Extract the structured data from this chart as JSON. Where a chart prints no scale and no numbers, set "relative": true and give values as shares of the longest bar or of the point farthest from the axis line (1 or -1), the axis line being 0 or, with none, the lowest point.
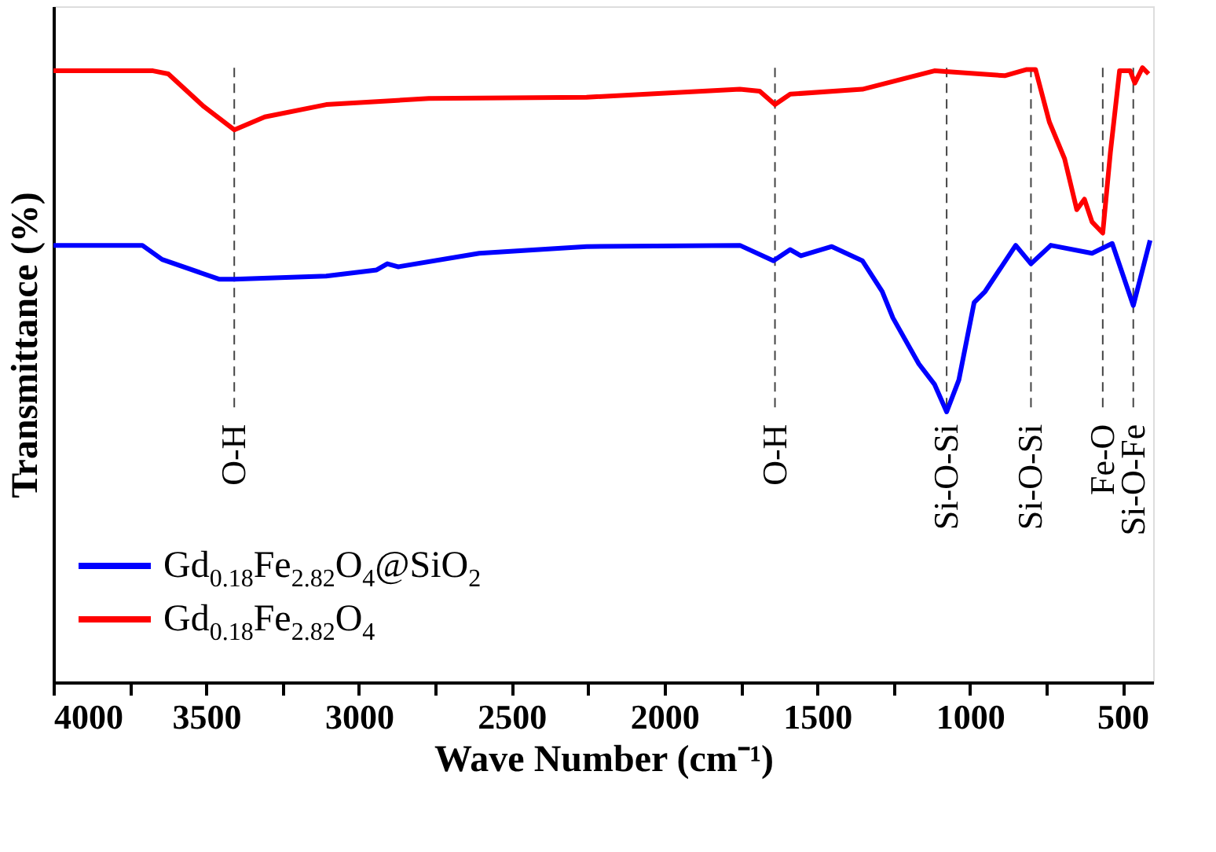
{
  "chart_data": {
    "type": "line",
    "relative": true,
    "xlabel": "Wave Number (cm⁻¹)",
    "ylabel": "Transmittance (%)",
    "xlim": [
      4000,
      400
    ],
    "xticks": [
      4000,
      {
        "value": 3750,
        "label": null
      },
      3500,
      {
        "value": 3250,
        "label": null
      },
      3000,
      {
        "value": 2750,
        "label": null
      },
      2500,
      {
        "value": 2250,
        "label": null
      },
      2000,
      {
        "value": 1750,
        "label": null
      },
      1500,
      {
        "value": 1250,
        "label": null
      },
      1000,
      {
        "value": 750,
        "label": null
      },
      500
    ],
    "grid": false,
    "legend": "bottom left",
    "marker": "none",
    "line_style": "solid",
    "series": [
      {
        "name": "Gd$_{0.18}$Fe$_{2.82}$O$_{4}$@SiO$_{2}$",
        "color": "#0000ff",
        "x": [
          4000,
          3709,
          3644,
          3458,
          3408,
          3107,
          2942,
          2907,
          2872,
          2606,
          2255,
          1753,
          1643,
          1588,
          1553,
          1452,
          1352,
          1287,
          1252,
          1167,
          1116,
          1076,
          1036,
          986,
          950,
          850,
          800,
          735,
          600,
          534,
          465,
          410
        ],
        "values": [
          0.711,
          0.711,
          0.688,
          0.656,
          0.656,
          0.661,
          0.671,
          0.681,
          0.676,
          0.698,
          0.709,
          0.711,
          0.686,
          0.704,
          0.694,
          0.709,
          0.686,
          0.636,
          0.593,
          0.518,
          0.485,
          0.44,
          0.492,
          0.618,
          0.636,
          0.711,
          0.681,
          0.711,
          0.698,
          0.714,
          0.613,
          0.719
        ]
      },
      {
        "name": "Gd$_{0.18}$Fe$_{2.82}$O$_{4}$",
        "color": "#ff0000",
        "x": [
          4000,
          3674,
          3624,
          3508,
          3408,
          3308,
          3107,
          2771,
          2255,
          1753,
          1688,
          1638,
          1588,
          1352,
          1116,
          886,
          816,
          785,
          740,
          690,
          650,
          625,
          600,
          565,
          540,
          510,
          475,
          460,
          435,
          415
        ],
        "values": [
          0.995,
          0.995,
          0.99,
          0.937,
          0.899,
          0.92,
          0.94,
          0.95,
          0.952,
          0.965,
          0.962,
          0.94,
          0.957,
          0.965,
          0.995,
          0.987,
          0.997,
          0.997,
          0.912,
          0.852,
          0.769,
          0.786,
          0.749,
          0.731,
          0.862,
          0.995,
          0.995,
          0.975,
          1.0,
          0.99
        ]
      }
    ],
    "ref_lines": [
      {
        "axis": "x",
        "value": 3408,
        "label": "O-H",
        "line_style": "dashed"
      },
      {
        "axis": "x",
        "value": 1638,
        "label": "O-H",
        "line_style": "dashed"
      },
      {
        "axis": "x",
        "value": 1076,
        "label": "Si-O-Si",
        "line_style": "dashed"
      },
      {
        "axis": "x",
        "value": 800,
        "label": "Si-O-Si",
        "line_style": "dashed"
      },
      {
        "axis": "x",
        "value": 565,
        "label": "Fe-O",
        "line_style": "dashed"
      },
      {
        "axis": "x",
        "value": 465,
        "label": "Si-O-Fe",
        "line_style": "dashed"
      }
    ]
  }
}
